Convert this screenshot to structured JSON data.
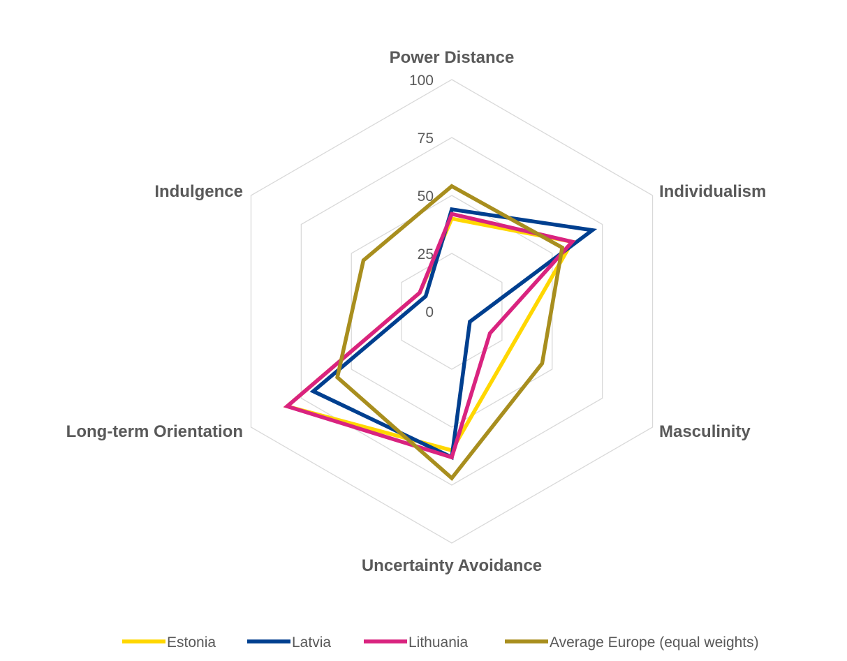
{
  "chart_data": {
    "type": "radar",
    "axes": [
      "Power Distance",
      "Individualism",
      "Masculinity",
      "Uncertainty Avoidance",
      "Long-term Orientation",
      "Indulgence"
    ],
    "r_range": [
      0,
      100
    ],
    "ticks": [
      "0",
      "25",
      "50",
      "75",
      "100"
    ],
    "tick_values": [
      0,
      25,
      50,
      75,
      100
    ],
    "grid": true,
    "legend_position": "bottom",
    "series": [
      {
        "name": "Estonia",
        "color": "#FFD700",
        "values": [
          40,
          60,
          30,
          60,
          82,
          16
        ]
      },
      {
        "name": "Latvia",
        "color": "#003F8F",
        "values": [
          44,
          70,
          9,
          63,
          69,
          13
        ]
      },
      {
        "name": "Lithuania",
        "color": "#D9237F",
        "values": [
          42,
          60,
          19,
          63,
          82,
          16
        ]
      },
      {
        "name": "Average Europe (equal weights)",
        "color": "#A88E1E",
        "values": [
          54,
          55,
          45,
          72,
          57,
          44
        ]
      }
    ]
  }
}
